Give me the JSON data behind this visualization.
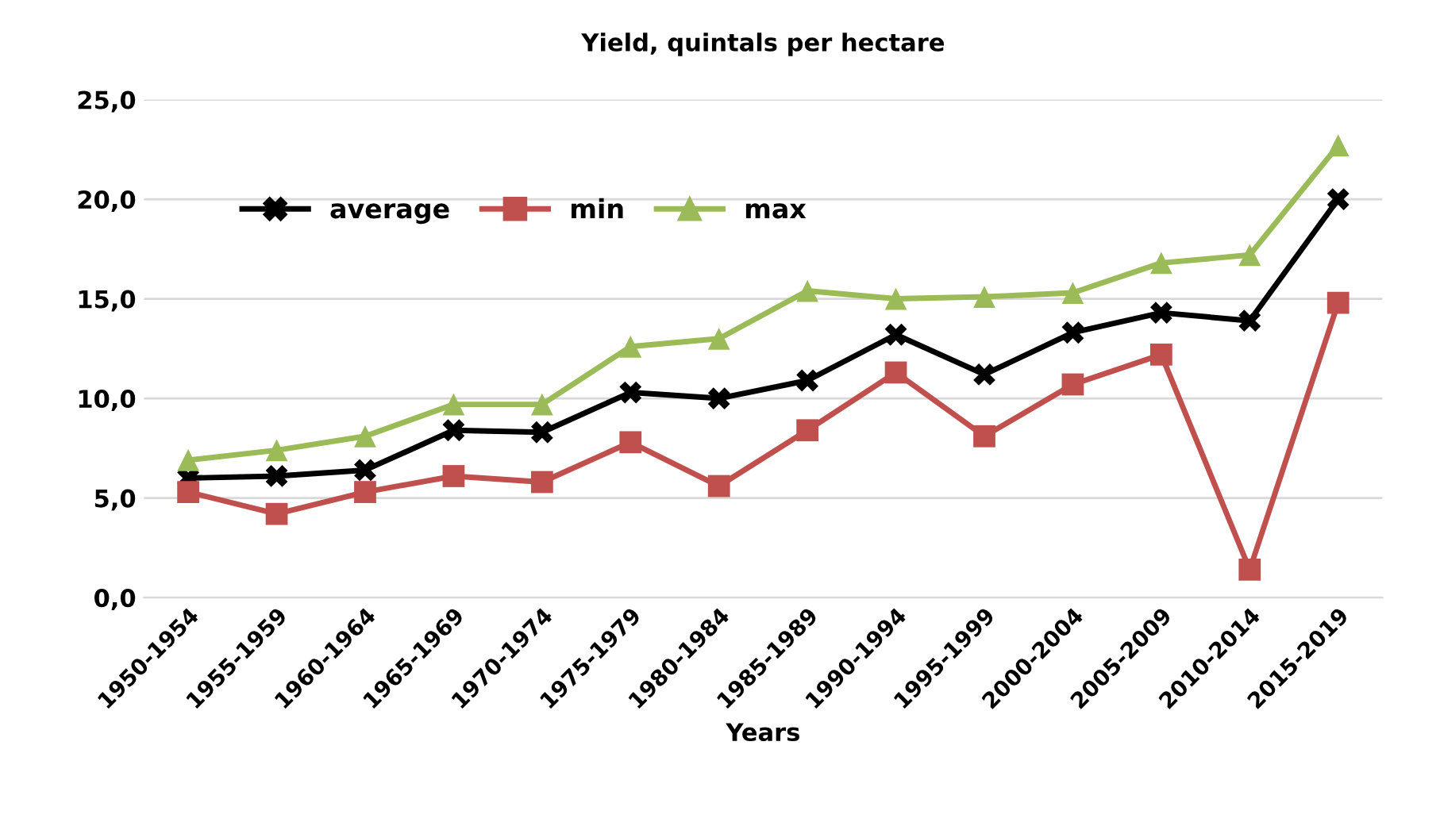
{
  "chart_data": {
    "type": "line",
    "title": "Yield, quintals per hectare",
    "xlabel": "Years",
    "categories": [
      "1950-1954",
      "1955-1959",
      "1960-1964",
      "1965-1969",
      "1970-1974",
      "1975-1979",
      "1980-1984",
      "1985-1989",
      "1990-1994",
      "1995-1999",
      "2000-2004",
      "2005-2009",
      "2010-2014",
      "2015-2019"
    ],
    "series": [
      {
        "name": "average",
        "color": "#000000",
        "marker": "cross",
        "values": [
          6.0,
          6.1,
          6.4,
          8.4,
          8.3,
          10.3,
          10.0,
          10.9,
          13.2,
          11.2,
          13.3,
          14.3,
          13.9,
          20.0
        ]
      },
      {
        "name": "min",
        "color": "#c0504d",
        "marker": "square",
        "values": [
          5.3,
          4.2,
          5.3,
          6.1,
          5.8,
          7.8,
          5.6,
          8.4,
          11.3,
          8.1,
          10.7,
          12.2,
          1.4,
          14.8
        ]
      },
      {
        "name": "max",
        "color": "#9bbb59",
        "marker": "triangle",
        "values": [
          6.9,
          7.4,
          8.1,
          9.7,
          9.7,
          12.6,
          13.0,
          15.4,
          15.0,
          15.1,
          15.3,
          16.8,
          17.2,
          22.7
        ]
      }
    ],
    "ylim": [
      0,
      25
    ],
    "yticks": [
      {
        "value": 0,
        "label": "0,0"
      },
      {
        "value": 5,
        "label": "5,0"
      },
      {
        "value": 10,
        "label": "10,0"
      },
      {
        "value": 15,
        "label": "15,0"
      },
      {
        "value": 20,
        "label": "20,0"
      },
      {
        "value": 25,
        "label": "25,0"
      }
    ],
    "grid": "y",
    "legend": "top left",
    "line_style": "solid"
  }
}
